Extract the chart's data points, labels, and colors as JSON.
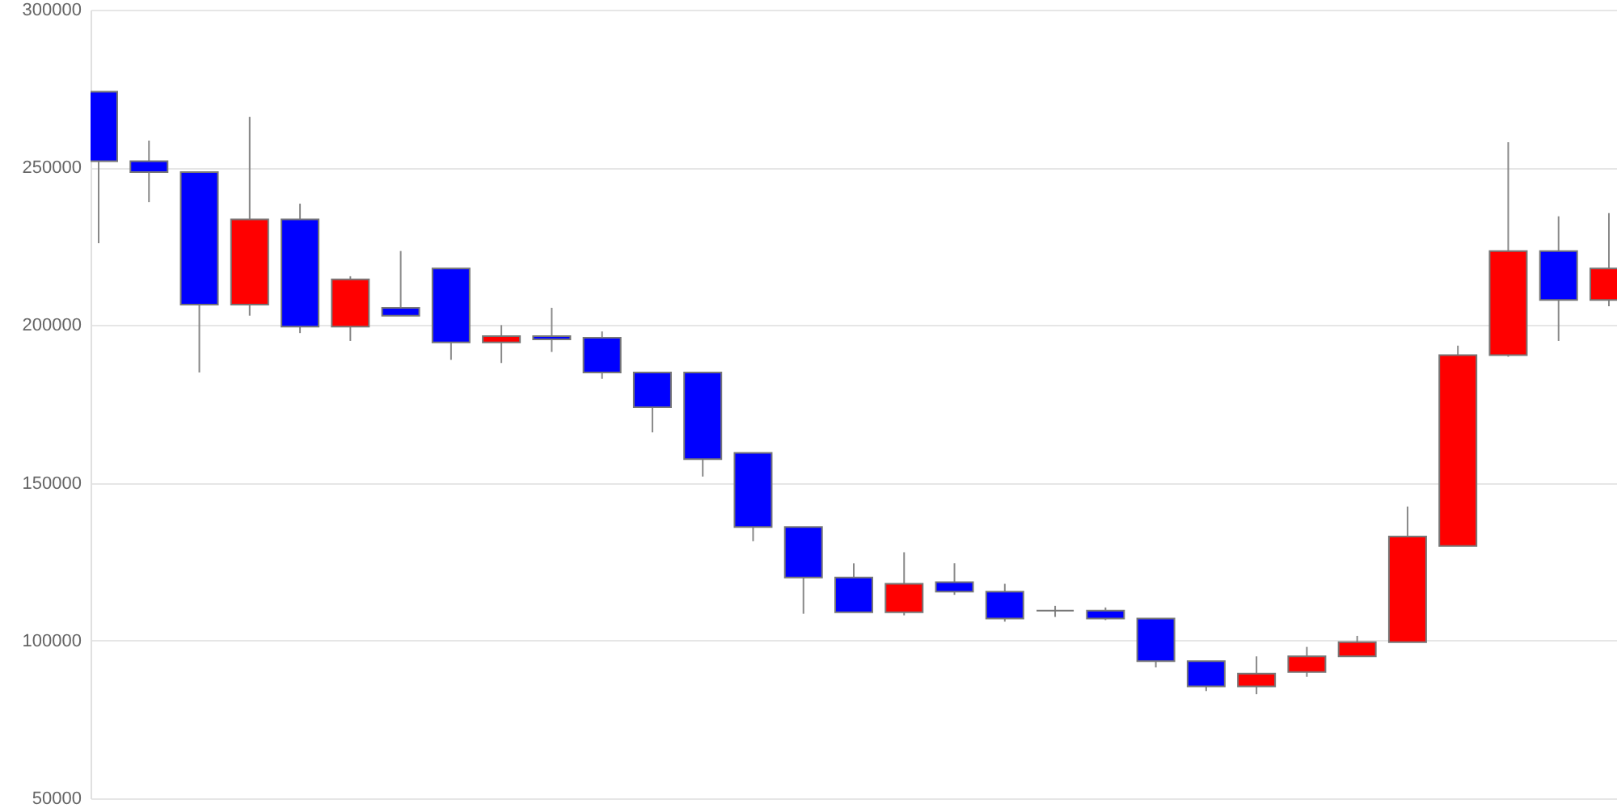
{
  "chart_data": {
    "type": "candlestick",
    "categories": [
      null,
      null,
      null,
      null,
      null,
      null,
      null,
      null,
      null,
      null,
      null,
      null,
      null,
      null,
      null,
      null,
      null,
      null,
      null,
      null,
      null,
      null,
      null,
      null,
      null,
      null,
      null,
      null,
      null,
      null,
      null
    ],
    "ohlc": [
      [
        274000,
        274000,
        226000,
        252000
      ],
      [
        252000,
        258500,
        239000,
        248500
      ],
      [
        248500,
        248500,
        185000,
        206500
      ],
      [
        206500,
        266000,
        203000,
        233500
      ],
      [
        233500,
        238500,
        197500,
        199500
      ],
      [
        199500,
        215500,
        195000,
        214500
      ],
      [
        205500,
        223500,
        203000,
        203000
      ],
      [
        218000,
        218000,
        189000,
        194500
      ],
      [
        194500,
        200000,
        188000,
        196500
      ],
      [
        196500,
        205500,
        191500,
        195500
      ],
      [
        196000,
        198000,
        183000,
        185000
      ],
      [
        185000,
        185000,
        166000,
        174000
      ],
      [
        185000,
        185000,
        152000,
        157500
      ],
      [
        159500,
        159500,
        131500,
        136000
      ],
      [
        136000,
        136000,
        108500,
        120000
      ],
      [
        120000,
        124500,
        109000,
        109000
      ],
      [
        109000,
        128000,
        108000,
        118000
      ],
      [
        118500,
        124500,
        114500,
        115500
      ],
      [
        115500,
        118000,
        106000,
        107000
      ],
      [
        109500,
        111000,
        107500,
        109500
      ],
      [
        109500,
        110500,
        106500,
        107000
      ],
      [
        107000,
        107000,
        91500,
        93500
      ],
      [
        93500,
        93500,
        84000,
        85500
      ],
      [
        85500,
        95000,
        83000,
        89500
      ],
      [
        90000,
        98000,
        88500,
        95000
      ],
      [
        95000,
        101500,
        95000,
        99500
      ],
      [
        99500,
        142500,
        99500,
        133000
      ],
      [
        130000,
        193500,
        130000,
        190500
      ],
      [
        190500,
        258000,
        190000,
        223500
      ],
      [
        223500,
        234500,
        195000,
        208000
      ],
      [
        208000,
        235500,
        206000,
        218000
      ]
    ],
    "colors": [
      "#0000ff",
      "#0000ff",
      "#0000ff",
      "#ff0000",
      "#0000ff",
      "#ff0000",
      "#0000ff",
      "#0000ff",
      "#ff0000",
      "#0000ff",
      "#0000ff",
      "#0000ff",
      "#0000ff",
      "#0000ff",
      "#0000ff",
      "#0000ff",
      "#ff0000",
      "#0000ff",
      "#0000ff",
      "#777777",
      "#0000ff",
      "#0000ff",
      "#0000ff",
      "#ff0000",
      "#ff0000",
      "#ff0000",
      "#ff0000",
      "#ff0000",
      "#ff0000",
      "#0000ff",
      "#ff0000"
    ],
    "ylim": [
      50000,
      300000
    ],
    "yticks": [
      50000,
      100000,
      150000,
      200000,
      250000,
      300000
    ],
    "grid": "y",
    "tick_labels": "y"
  }
}
